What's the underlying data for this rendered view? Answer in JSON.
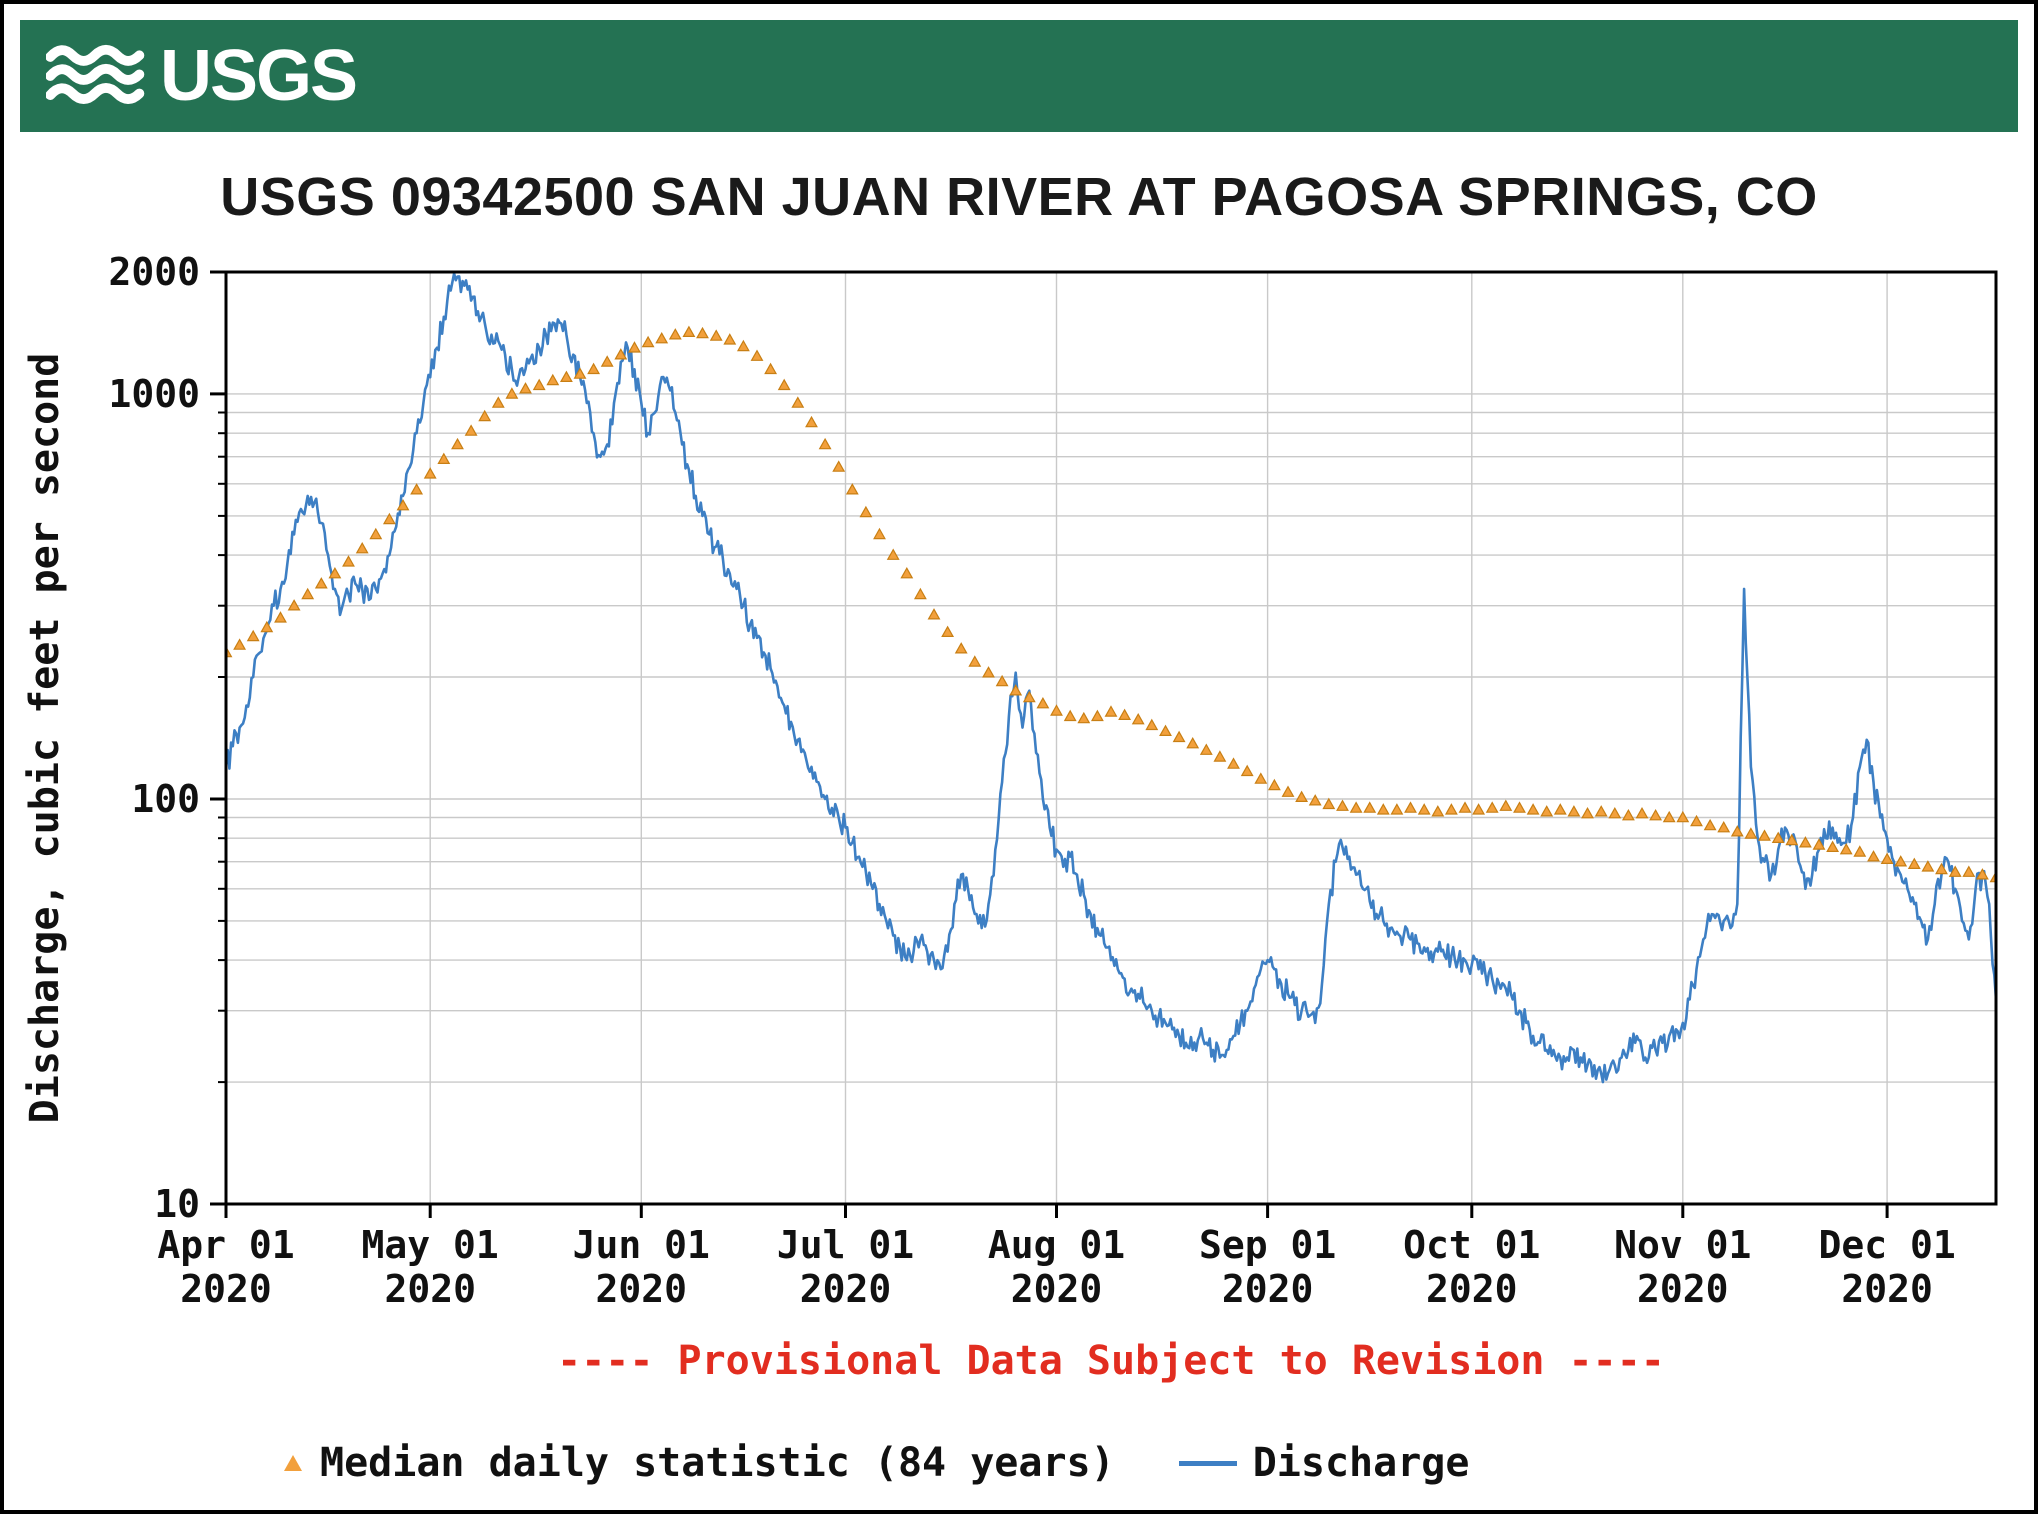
{
  "header": {
    "logo_text": "USGS",
    "banner_color": "#247253"
  },
  "chart_data": {
    "type": "line",
    "title": "USGS 09342500 SAN JUAN RIVER AT PAGOSA SPRINGS, CO",
    "ylabel": "Discharge, cubic feet per second",
    "y_scale": "log",
    "ylim": [
      10,
      2000
    ],
    "y_ticks": [
      10,
      100,
      1000,
      2000
    ],
    "grid": "on",
    "legend_position": "bottom",
    "provisional_note": "---- Provisional Data Subject to Revision ----",
    "colors": {
      "grid": "#c9c9c9",
      "axis": "#000000",
      "note": "#e22d20"
    },
    "x_axis": {
      "end_day": 260,
      "month_ticks": [
        {
          "day": 0,
          "line1": "Apr 01",
          "line2": "2020"
        },
        {
          "day": 30,
          "line1": "May 01",
          "line2": "2020"
        },
        {
          "day": 61,
          "line1": "Jun 01",
          "line2": "2020"
        },
        {
          "day": 91,
          "line1": "Jul 01",
          "line2": "2020"
        },
        {
          "day": 122,
          "line1": "Aug 01",
          "line2": "2020"
        },
        {
          "day": 153,
          "line1": "Sep 01",
          "line2": "2020"
        },
        {
          "day": 183,
          "line1": "Oct 01",
          "line2": "2020"
        },
        {
          "day": 214,
          "line1": "Nov 01",
          "line2": "2020"
        },
        {
          "day": 244,
          "line1": "Dec 01",
          "line2": "2020"
        }
      ]
    },
    "series": [
      {
        "name": "Median daily statistic (84 years)",
        "style": "markers",
        "marker": "triangle",
        "color": "#f2a03c",
        "edge_color": "#c87f14",
        "day_start": 0,
        "day_step": 2,
        "values": [
          230,
          240,
          252,
          265,
          280,
          300,
          320,
          340,
          360,
          385,
          415,
          450,
          490,
          530,
          580,
          635,
          690,
          750,
          810,
          880,
          950,
          1000,
          1030,
          1050,
          1080,
          1100,
          1120,
          1150,
          1200,
          1250,
          1300,
          1340,
          1370,
          1400,
          1420,
          1410,
          1390,
          1360,
          1310,
          1240,
          1150,
          1050,
          950,
          850,
          750,
          660,
          580,
          510,
          450,
          400,
          360,
          320,
          285,
          258,
          235,
          218,
          205,
          195,
          185,
          178,
          172,
          165,
          160,
          158,
          160,
          164,
          161,
          157,
          152,
          147,
          142,
          137,
          132,
          127,
          122,
          117,
          112,
          108,
          104,
          101,
          99,
          97,
          96,
          95,
          95,
          94,
          94,
          95,
          94,
          93,
          94,
          95,
          94,
          95,
          96,
          95,
          94,
          93,
          94,
          93,
          92,
          93,
          92,
          91,
          92,
          91,
          90,
          90,
          88,
          86,
          85,
          83,
          82,
          81,
          80,
          79,
          78,
          77,
          76,
          75,
          74,
          72,
          71,
          70,
          69,
          68,
          67,
          66,
          66,
          65,
          64
        ]
      },
      {
        "name": "Discharge",
        "style": "line",
        "color": "#3d7fc4",
        "day_start": 0,
        "day_step": 1,
        "jitter_pct": 7,
        "values": [
          120,
          135,
          150,
          170,
          200,
          230,
          260,
          300,
          330,
          380,
          450,
          520,
          560,
          540,
          480,
          400,
          330,
          295,
          320,
          340,
          330,
          310,
          330,
          360,
          400,
          470,
          560,
          660,
          800,
          950,
          1100,
          1300,
          1550,
          1800,
          1950,
          1850,
          1700,
          1600,
          1500,
          1400,
          1350,
          1250,
          1150,
          1100,
          1150,
          1250,
          1300,
          1400,
          1500,
          1500,
          1400,
          1250,
          1100,
          950,
          800,
          700,
          750,
          950,
          1200,
          1300,
          1150,
          950,
          800,
          900,
          1100,
          1050,
          900,
          750,
          650,
          560,
          500,
          450,
          420,
          390,
          360,
          330,
          300,
          270,
          250,
          230,
          210,
          190,
          170,
          155,
          140,
          130,
          120,
          110,
          100,
          95,
          90,
          85,
          78,
          72,
          66,
          60,
          55,
          50,
          46,
          43,
          40,
          42,
          45,
          42,
          40,
          38,
          42,
          55,
          65,
          60,
          52,
          48,
          55,
          75,
          110,
          160,
          205,
          150,
          185,
          130,
          100,
          85,
          75,
          68,
          72,
          65,
          58,
          52,
          48,
          44,
          40,
          38,
          36,
          34,
          33,
          31,
          30,
          29,
          28,
          27,
          26,
          25,
          24,
          26,
          25,
          24,
          23,
          24,
          26,
          28,
          30,
          34,
          38,
          40,
          38,
          35,
          33,
          31,
          30,
          29,
          28,
          35,
          55,
          70,
          76,
          72,
          65,
          60,
          56,
          52,
          50,
          48,
          47,
          46,
          45,
          44,
          43,
          42,
          42,
          41,
          41,
          40,
          40,
          39,
          38,
          37,
          36,
          35,
          34,
          32,
          30,
          28,
          26,
          25,
          24,
          24,
          23,
          23,
          24,
          23,
          22,
          22,
          21,
          21,
          22,
          23,
          24,
          25,
          24,
          23,
          24,
          25,
          26,
          27,
          28,
          32,
          38,
          45,
          50,
          52,
          50,
          48,
          55,
          330,
          120,
          80,
          70,
          65,
          75,
          85,
          80,
          70,
          60,
          65,
          75,
          80,
          85,
          80,
          78,
          90,
          120,
          140,
          110,
          90,
          80,
          70,
          65,
          60,
          55,
          50,
          45,
          55,
          65,
          70,
          60,
          50,
          45,
          60,
          65,
          55,
          32
        ]
      }
    ]
  }
}
